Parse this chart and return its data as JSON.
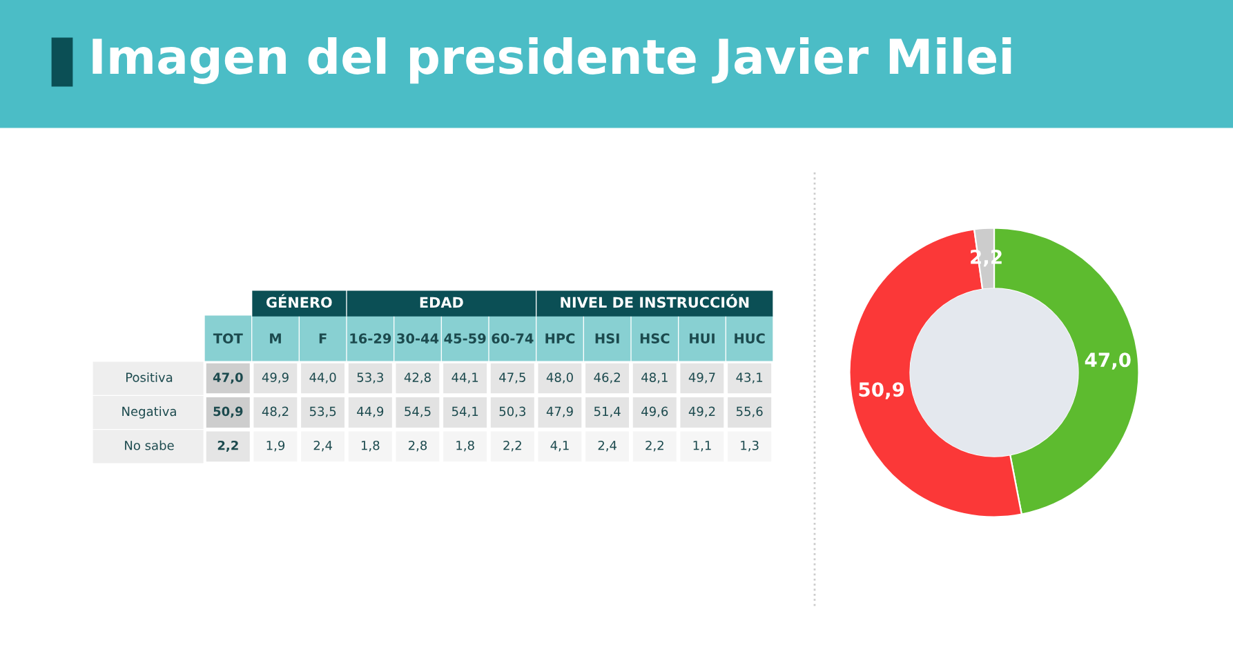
{
  "chart_data": [
    {
      "type": "heatmap",
      "title": "Imagen del presidente Javier Milei",
      "annotations": [
        "GÉNERO",
        "EDAD",
        "NIVEL DE INSTRUCCIÓN"
      ],
      "categories": [
        "TOT",
        "M",
        "F",
        "16-29",
        "30-44",
        "45-59",
        "60-74",
        "HPC",
        "HSI",
        "HSC",
        "HUI",
        "HUC"
      ],
      "y_categories": [
        "Positiva",
        "Negativa",
        "No sabe"
      ],
      "cells": [
        [
          47.0,
          49.9,
          44.0,
          53.3,
          42.8,
          44.1,
          47.5,
          48.0,
          46.2,
          48.1,
          49.7,
          43.1
        ],
        [
          50.9,
          48.2,
          53.5,
          44.9,
          54.5,
          54.1,
          50.3,
          47.9,
          51.4,
          49.6,
          49.2,
          55.6
        ],
        [
          2.2,
          1.9,
          2.4,
          1.8,
          2.8,
          1.8,
          2.2,
          4.1,
          2.4,
          2.2,
          1.1,
          1.3
        ]
      ],
      "cell_labels": [
        [
          "47,0",
          "49,9",
          "44,0",
          "53,3",
          "42,8",
          "44,1",
          "47,5",
          "48,0",
          "46,2",
          "48,1",
          "49,7",
          "43,1"
        ],
        [
          "50,9",
          "48,2",
          "53,5",
          "44,9",
          "54,5",
          "54,1",
          "50,3",
          "47,9",
          "51,4",
          "49,6",
          "49,2",
          "55,6"
        ],
        [
          "2,2",
          "1,9",
          "2,4",
          "1,8",
          "2,8",
          "1,8",
          "2,2",
          "4,1",
          "2,4",
          "2,2",
          "1,1",
          "1,3"
        ]
      ]
    },
    {
      "type": "donut",
      "categories": [
        null,
        null,
        null
      ],
      "values": [
        47.0,
        50.9,
        2.2
      ],
      "colors": [
        "#5dbb2f",
        "#fb3838",
        "#cccccc"
      ],
      "value_labels": [
        "47,0",
        "50,9",
        "2,2"
      ]
    }
  ]
}
